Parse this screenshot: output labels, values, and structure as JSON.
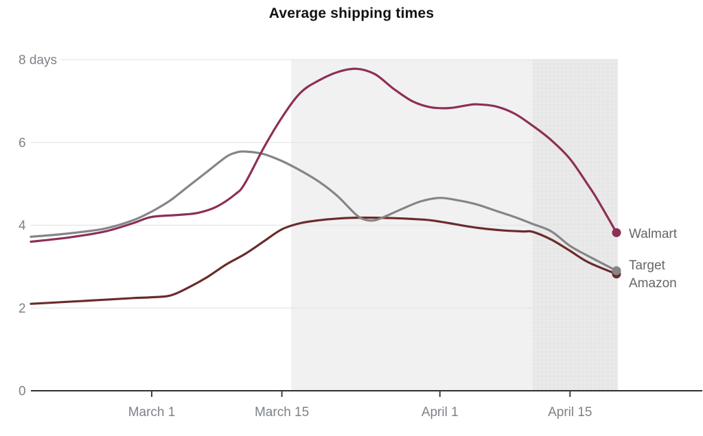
{
  "title": "Average shipping times",
  "legend": {
    "walmart": "Walmart",
    "target": "Target",
    "amazon": "Amazon"
  },
  "colors": {
    "walmart_line": "#8c2f57",
    "target_line": "#858585",
    "amazon_line": "#6b2b2b",
    "shaded_region_1": "#f1f1f1",
    "shaded_region_2": "#e9e9e9",
    "gridline": "#e4e4e4",
    "axis_baseline": "#2e2e2e",
    "axis_label_text": "#7d8187",
    "legend_text": "#666666",
    "title_text": "#121212"
  },
  "chart_data": {
    "type": "line",
    "title": "Average shipping times",
    "xlabel": "",
    "ylabel": "days",
    "grid": "horizontal",
    "legend_position": "right-of-line-endpoints",
    "x_axis": {
      "range": [
        0,
        63
      ],
      "unit": "days (0 = leftmost plotted point, mid-February)",
      "ticks": [
        {
          "x": 13,
          "label": "March 1"
        },
        {
          "x": 27,
          "label": "March 15"
        },
        {
          "x": 44,
          "label": "April 1"
        },
        {
          "x": 58,
          "label": "April 15"
        }
      ]
    },
    "y_axis": {
      "range": [
        0,
        8
      ],
      "ticks": [
        {
          "v": 0,
          "label": "0"
        },
        {
          "v": 2,
          "label": "2"
        },
        {
          "v": 4,
          "label": "4"
        },
        {
          "v": 6,
          "label": "6"
        },
        {
          "v": 8,
          "label": "8 days"
        }
      ]
    },
    "shaded_regions": [
      {
        "from": 28,
        "to": 54,
        "color": "#f1f1f1",
        "dotted": false
      },
      {
        "from": 54,
        "to": 63,
        "color": "#e9e9e9",
        "dotted": true
      }
    ],
    "series": [
      {
        "name": "Walmart",
        "color": "#8c2f57",
        "endpoint_value": 3.82,
        "points": [
          [
            0,
            3.6
          ],
          [
            4,
            3.7
          ],
          [
            8,
            3.85
          ],
          [
            11,
            4.05
          ],
          [
            13,
            4.2
          ],
          [
            16,
            4.25
          ],
          [
            18,
            4.3
          ],
          [
            20,
            4.45
          ],
          [
            22,
            4.75
          ],
          [
            23,
            5.0
          ],
          [
            25,
            5.85
          ],
          [
            27,
            6.6
          ],
          [
            29,
            7.2
          ],
          [
            31,
            7.5
          ],
          [
            33,
            7.7
          ],
          [
            35,
            7.78
          ],
          [
            37,
            7.65
          ],
          [
            39,
            7.3
          ],
          [
            41,
            7.0
          ],
          [
            43,
            6.85
          ],
          [
            45,
            6.83
          ],
          [
            47,
            6.9
          ],
          [
            48,
            6.92
          ],
          [
            50,
            6.87
          ],
          [
            52,
            6.7
          ],
          [
            54,
            6.4
          ],
          [
            56,
            6.05
          ],
          [
            58,
            5.6
          ],
          [
            60,
            4.95
          ],
          [
            61,
            4.6
          ],
          [
            63,
            3.82
          ]
        ]
      },
      {
        "name": "Target",
        "color": "#858585",
        "endpoint_value": 2.9,
        "points": [
          [
            0,
            3.72
          ],
          [
            4,
            3.8
          ],
          [
            8,
            3.92
          ],
          [
            11,
            4.12
          ],
          [
            13,
            4.33
          ],
          [
            15,
            4.6
          ],
          [
            17,
            4.95
          ],
          [
            19,
            5.3
          ],
          [
            21,
            5.65
          ],
          [
            22,
            5.75
          ],
          [
            23,
            5.78
          ],
          [
            25,
            5.72
          ],
          [
            27,
            5.55
          ],
          [
            29,
            5.32
          ],
          [
            31,
            5.05
          ],
          [
            33,
            4.7
          ],
          [
            35,
            4.25
          ],
          [
            36,
            4.13
          ],
          [
            37,
            4.12
          ],
          [
            38,
            4.2
          ],
          [
            40,
            4.4
          ],
          [
            42,
            4.58
          ],
          [
            44,
            4.66
          ],
          [
            46,
            4.6
          ],
          [
            48,
            4.5
          ],
          [
            50,
            4.35
          ],
          [
            52,
            4.2
          ],
          [
            54,
            4.03
          ],
          [
            56,
            3.85
          ],
          [
            58,
            3.5
          ],
          [
            60,
            3.25
          ],
          [
            63,
            2.9
          ]
        ]
      },
      {
        "name": "Amazon",
        "color": "#6b2b2b",
        "endpoint_value": 2.82,
        "points": [
          [
            0,
            2.1
          ],
          [
            4,
            2.15
          ],
          [
            8,
            2.2
          ],
          [
            11,
            2.24
          ],
          [
            13,
            2.26
          ],
          [
            15,
            2.3
          ],
          [
            17,
            2.5
          ],
          [
            19,
            2.75
          ],
          [
            21,
            3.05
          ],
          [
            23,
            3.3
          ],
          [
            25,
            3.6
          ],
          [
            27,
            3.9
          ],
          [
            29,
            4.05
          ],
          [
            31,
            4.12
          ],
          [
            33,
            4.16
          ],
          [
            35,
            4.18
          ],
          [
            37,
            4.18
          ],
          [
            39,
            4.17
          ],
          [
            41,
            4.15
          ],
          [
            43,
            4.12
          ],
          [
            45,
            4.05
          ],
          [
            47,
            3.97
          ],
          [
            49,
            3.91
          ],
          [
            51,
            3.87
          ],
          [
            53,
            3.85
          ],
          [
            54,
            3.84
          ],
          [
            56,
            3.65
          ],
          [
            58,
            3.38
          ],
          [
            60,
            3.1
          ],
          [
            63,
            2.82
          ]
        ]
      }
    ]
  }
}
